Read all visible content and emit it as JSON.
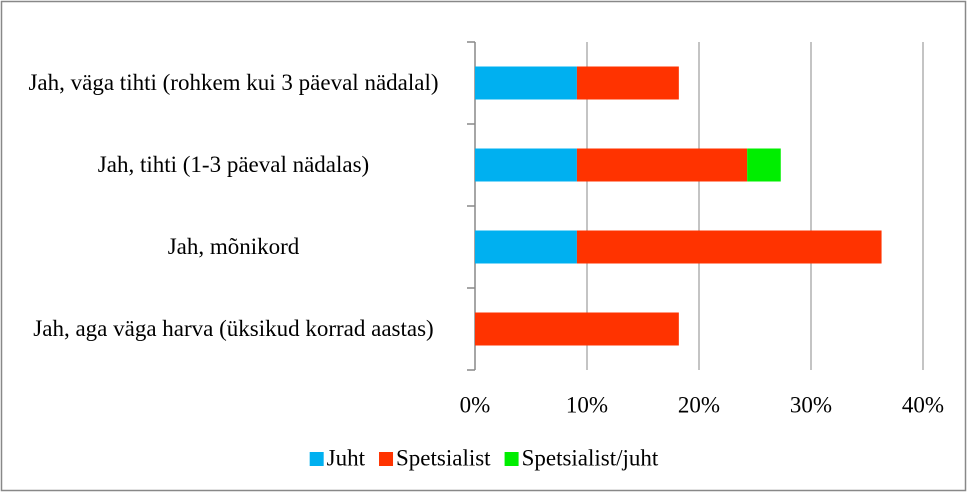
{
  "chart_data": {
    "type": "stacked_barh",
    "categories": [
      "Jah, väga tihti (rohkem kui 3 päeval nädalal)",
      "Jah, tihti (1-3 päeval nädalas)",
      "Jah, mõnikord",
      "Jah, aga väga harva (üksikud korrad aastas)"
    ],
    "series": [
      {
        "name": "Juht",
        "color": "#00b0f0",
        "values": [
          9.1,
          9.1,
          9.1,
          0
        ]
      },
      {
        "name": "Spetsialist",
        "color": "#ff3300",
        "values": [
          9.1,
          15.2,
          27.2,
          18.2
        ]
      },
      {
        "name": "Spetsialist/juht",
        "color": "#00ee00",
        "values": [
          0,
          3.0,
          0,
          0
        ]
      }
    ],
    "xlim": [
      0,
      40
    ],
    "xticks": [
      {
        "value": 0,
        "label": "0%"
      },
      {
        "value": 10,
        "label": "10%"
      },
      {
        "value": 20,
        "label": "20%"
      },
      {
        "value": 30,
        "label": "30%"
      },
      {
        "value": 40,
        "label": "40%"
      }
    ],
    "grid": true,
    "legend": "bottom"
  }
}
